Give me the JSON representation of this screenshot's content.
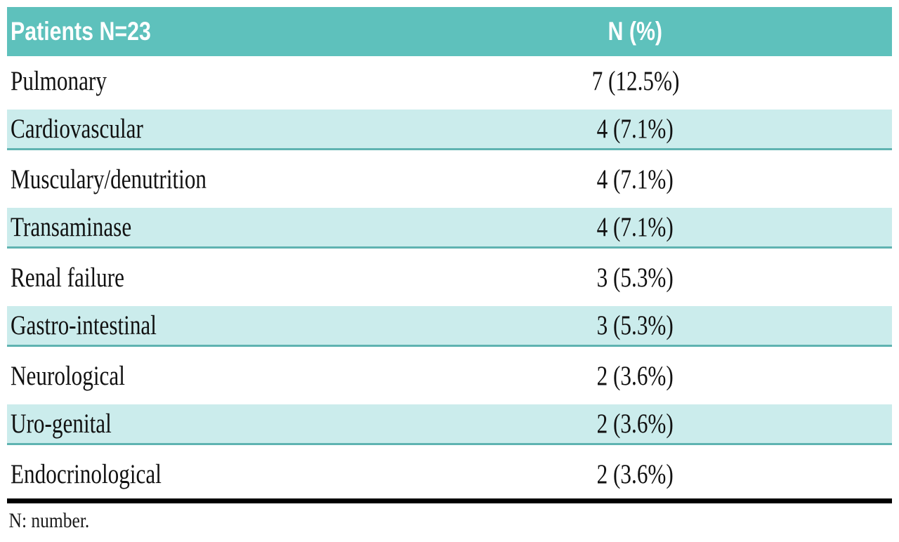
{
  "table": {
    "header": {
      "col1": "Patients N=23",
      "col2": "N (%)"
    },
    "rows": [
      {
        "label": "Pulmonary",
        "value": "7 (12.5%)",
        "shaded": false
      },
      {
        "label": "Cardiovascular",
        "value": "4 (7.1%)",
        "shaded": true
      },
      {
        "label": "Musculary/denutrition",
        "value": "4 (7.1%)",
        "shaded": false
      },
      {
        "label": "Transaminase",
        "value": "4 (7.1%)",
        "shaded": true
      },
      {
        "label": "Renal failure",
        "value": "3 (5.3%)",
        "shaded": false
      },
      {
        "label": "Gastro-intestinal",
        "value": "3 (5.3%)",
        "shaded": true
      },
      {
        "label": "Neurological",
        "value": "2 (3.6%)",
        "shaded": false
      },
      {
        "label": "Uro-genital",
        "value": "2 (3.6%)",
        "shaded": true
      },
      {
        "label": "Endocrinological",
        "value": "2 (3.6%)",
        "shaded": false
      }
    ],
    "footnote": "N: number."
  },
  "colors": {
    "header_bg": "#5ec1bc",
    "header_text": "#ffffff",
    "shaded_row_bg": "#cbecec",
    "shaded_row_border": "#5fb3b1",
    "body_text": "#111111",
    "bottom_rule": "#000000"
  }
}
